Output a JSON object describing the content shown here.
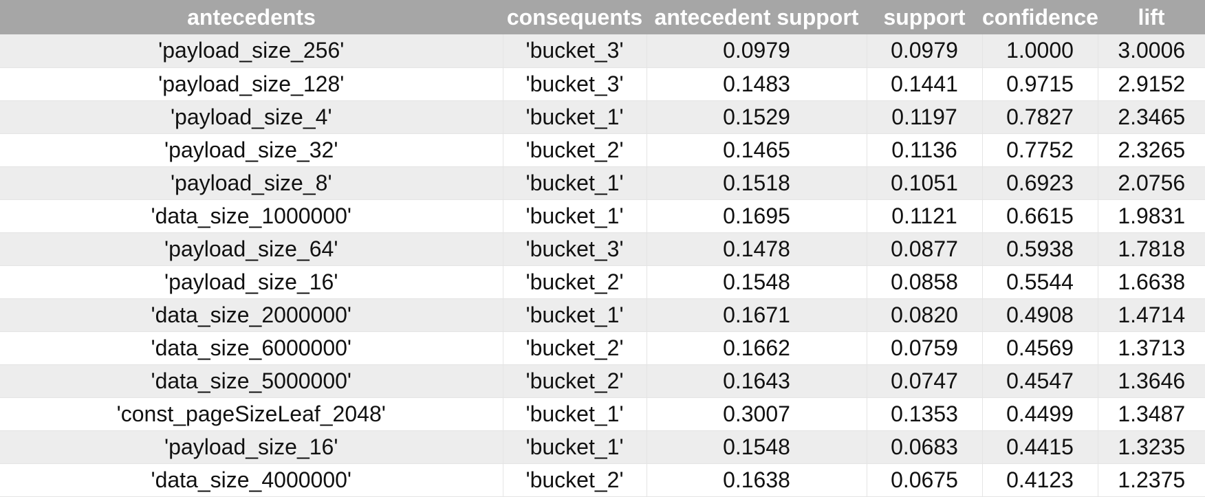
{
  "table": {
    "headers": {
      "antecedents": "antecedents",
      "consequents": "consequents",
      "antecedent_support": "antecedent support",
      "support": "support",
      "confidence": "confidence",
      "lift": "lift"
    },
    "rows": [
      [
        "'payload_size_256'",
        "'bucket_3'",
        "0.0979",
        "0.0979",
        "1.0000",
        "3.0006"
      ],
      [
        "'payload_size_128'",
        "'bucket_3'",
        "0.1483",
        "0.1441",
        "0.9715",
        "2.9152"
      ],
      [
        "'payload_size_4'",
        "'bucket_1'",
        "0.1529",
        "0.1197",
        "0.7827",
        "2.3465"
      ],
      [
        "'payload_size_32'",
        "'bucket_2'",
        "0.1465",
        "0.1136",
        "0.7752",
        "2.3265"
      ],
      [
        "'payload_size_8'",
        "'bucket_1'",
        "0.1518",
        "0.1051",
        "0.6923",
        "2.0756"
      ],
      [
        "'data_size_1000000'",
        "'bucket_1'",
        "0.1695",
        "0.1121",
        "0.6615",
        "1.9831"
      ],
      [
        "'payload_size_64'",
        "'bucket_3'",
        "0.1478",
        "0.0877",
        "0.5938",
        "1.7818"
      ],
      [
        "'payload_size_16'",
        "'bucket_2'",
        "0.1548",
        "0.0858",
        "0.5544",
        "1.6638"
      ],
      [
        "'data_size_2000000'",
        "'bucket_1'",
        "0.1671",
        "0.0820",
        "0.4908",
        "1.4714"
      ],
      [
        "'data_size_6000000'",
        "'bucket_2'",
        "0.1662",
        "0.0759",
        "0.4569",
        "1.3713"
      ],
      [
        "'data_size_5000000'",
        "'bucket_2'",
        "0.1643",
        "0.0747",
        "0.4547",
        "1.3646"
      ],
      [
        "'const_pageSizeLeaf_2048'",
        "'bucket_1'",
        "0.3007",
        "0.1353",
        "0.4499",
        "1.3487"
      ],
      [
        "'payload_size_16'",
        "'bucket_1'",
        "0.1548",
        "0.0683",
        "0.4415",
        "1.3235"
      ],
      [
        "'data_size_4000000'",
        "'bucket_2'",
        "0.1638",
        "0.0675",
        "0.4123",
        "1.2375"
      ]
    ]
  }
}
